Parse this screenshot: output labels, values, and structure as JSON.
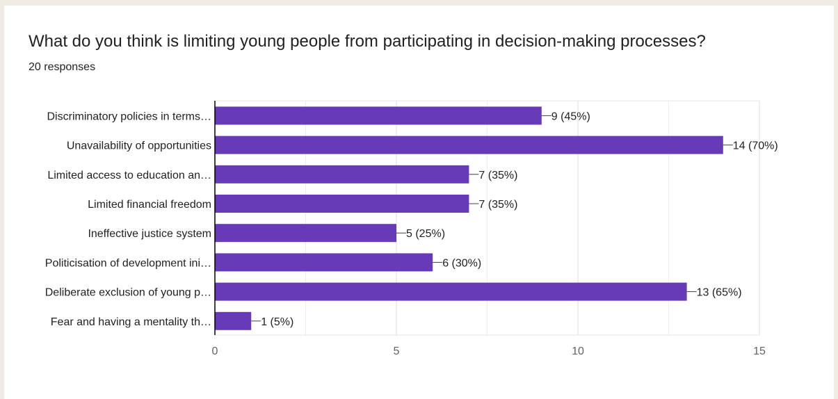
{
  "card": {
    "title": "What do you think is limiting young people from participating in decision-making processes?",
    "subtitle": "20 responses"
  },
  "colors": {
    "bar": "#673ab7",
    "grid": "#e5e5e5",
    "axis": "#000000",
    "text": "#202124",
    "tick": "#5f6368",
    "page_bg": "#efebe3",
    "card_bg": "#ffffff"
  },
  "chart_data": {
    "type": "bar",
    "orientation": "horizontal",
    "categories": [
      "Discriminatory policies in terms…",
      "Unavailability of opportunities",
      "Limited access to education an…",
      "Limited financial freedom",
      "Ineffective justice system",
      "Politicisation of development ini…",
      "Deliberate exclusion of young p…",
      "Fear and having a mentality th…"
    ],
    "values": [
      9,
      14,
      7,
      7,
      5,
      6,
      13,
      1
    ],
    "value_labels": [
      "9 (45%)",
      "14 (70%)",
      "7 (35%)",
      "7 (35%)",
      "5 (25%)",
      "6 (30%)",
      "13 (65%)",
      "1 (5%)"
    ],
    "xlim": [
      0,
      15
    ],
    "xticks": [
      0,
      5,
      10,
      15
    ],
    "grid": true,
    "legend": "none",
    "title": "",
    "xlabel": "",
    "ylabel": ""
  }
}
